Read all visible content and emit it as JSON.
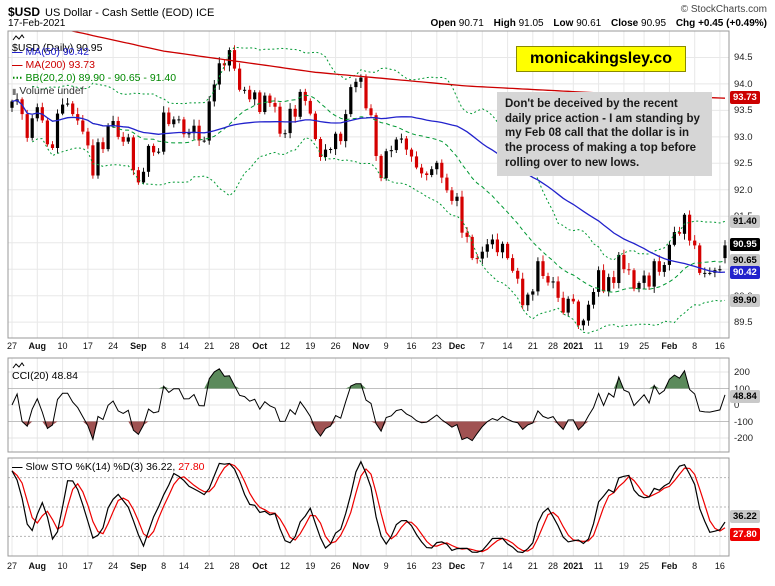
{
  "header": {
    "symbol": "$USD",
    "title": "US Dollar - Cash Settle (EOD) ICE",
    "source": "© StockCharts.com",
    "date": "17-Feb-2021",
    "open_label": "Open",
    "open": "90.71",
    "high_label": "High",
    "high": "91.05",
    "low_label": "Low",
    "low": "90.61",
    "close_label": "Close",
    "close": "90.95",
    "chg_label": "Chg",
    "chg": "+0.45 (+0.49%)"
  },
  "badge": {
    "text": "monicakingsley.co",
    "bg": "#ffff00"
  },
  "annotation": {
    "text": "Don't be deceived by the recent daily price action - I am standing by my Feb 08 call that the dollar is in the process of making a top before rolling over to new lows."
  },
  "legend": {
    "series": "$USD (Daily) 90.95",
    "ma50": "MA(50) 90.42",
    "ma200": "MA(200) 93.73",
    "bb": "BB(20,2.0) 89.90 - 90.65 - 91.40",
    "volume": "Volume undef"
  },
  "price_axis": {
    "ticks": [
      94.5,
      94.0,
      93.5,
      93.0,
      92.5,
      92.0,
      91.5,
      91.0,
      90.5,
      90.0,
      89.5
    ],
    "boxes": [
      {
        "text": "93.73",
        "value": 93.73,
        "bg": "#cc0000",
        "fg": "#ffffff"
      },
      {
        "text": "91.40",
        "value": 91.4,
        "bg": "#c9c9c9",
        "fg": "#000000"
      },
      {
        "text": "90.95",
        "value": 90.95,
        "bg": "#000000",
        "fg": "#ffffff"
      },
      {
        "text": "90.65",
        "value": 90.65,
        "bg": "#c9c9c9",
        "fg": "#000000"
      },
      {
        "text": "90.42",
        "value": 90.42,
        "bg": "#2222cc",
        "fg": "#ffffff"
      },
      {
        "text": "89.90",
        "value": 89.9,
        "bg": "#c9c9c9",
        "fg": "#000000"
      }
    ]
  },
  "cci": {
    "legend": "CCI(20) 48.84",
    "value": 48.84,
    "value_label": "48.84",
    "axis_ticks": [
      200,
      100,
      0,
      -100,
      -200
    ]
  },
  "sto": {
    "legend": "Slow STO %K(14) %D(3)",
    "k_text": "36.22,",
    "d_text": "27.80",
    "k_value": 36.22,
    "d_value": 27.8,
    "k_box": "36.22",
    "d_box": "27.80",
    "grid": [
      80,
      50,
      20
    ]
  },
  "chart_data": {
    "type": "candlestick",
    "symbol": "$USD",
    "timeframe": "daily",
    "title": "$USD US Dollar - Cash Settle (EOD) ICE",
    "price_range": [
      89.2,
      95.0
    ],
    "x_ticks": [
      [
        "27",
        0
      ],
      [
        "Aug",
        5
      ],
      [
        "10",
        10
      ],
      [
        "17",
        15
      ],
      [
        "24",
        20
      ],
      [
        "Sep",
        25
      ],
      [
        "8",
        30
      ],
      [
        "14",
        34
      ],
      [
        "21",
        39
      ],
      [
        "28",
        44
      ],
      [
        "Oct",
        49
      ],
      [
        "12",
        54
      ],
      [
        "19",
        59
      ],
      [
        "26",
        64
      ],
      [
        "Nov",
        69
      ],
      [
        "9",
        74
      ],
      [
        "16",
        79
      ],
      [
        "23",
        84
      ],
      [
        "Dec",
        88
      ],
      [
        "7",
        93
      ],
      [
        "14",
        98
      ],
      [
        "21",
        103
      ],
      [
        "28",
        107
      ],
      [
        "2021",
        111
      ],
      [
        "11",
        116
      ],
      [
        "19",
        121
      ],
      [
        "25",
        125
      ],
      [
        "Feb",
        130
      ],
      [
        "8",
        135
      ],
      [
        "16",
        140
      ]
    ],
    "close": [
      93.67,
      93.71,
      93.43,
      92.98,
      93.35,
      93.56,
      93.31,
      92.86,
      92.79,
      93.44,
      93.61,
      93.63,
      93.43,
      93.31,
      93.1,
      92.84,
      92.27,
      92.9,
      92.77,
      93.2,
      93.3,
      93.0,
      92.91,
      92.99,
      92.37,
      92.14,
      92.34,
      92.83,
      92.71,
      92.72,
      93.46,
      93.24,
      93.33,
      93.33,
      93.05,
      93.07,
      93.21,
      92.93,
      92.93,
      93.67,
      93.99,
      94.39,
      94.35,
      94.64,
      94.29,
      93.89,
      93.89,
      93.71,
      93.84,
      93.47,
      93.78,
      93.64,
      93.57,
      93.06,
      93.07,
      93.53,
      93.38,
      93.85,
      93.68,
      93.44,
      92.96,
      92.62,
      92.76,
      92.77,
      93.06,
      92.92,
      93.43,
      93.94,
      94.04,
      94.12,
      93.54,
      93.41,
      92.64,
      92.22,
      92.73,
      92.75,
      92.95,
      92.97,
      92.76,
      92.63,
      92.42,
      92.31,
      92.28,
      92.39,
      92.51,
      92.23,
      91.99,
      91.79,
      91.87,
      91.19,
      91.11,
      90.71,
      90.7,
      90.83,
      90.97,
      91.06,
      90.82,
      90.98,
      90.71,
      90.47,
      90.32,
      89.82,
      90.02,
      90.08,
      90.65,
      90.37,
      90.25,
      90.27,
      89.96,
      89.68,
      89.94,
      89.89,
      89.44,
      89.53,
      89.83,
      90.07,
      90.48,
      90.08,
      90.35,
      90.24,
      90.77,
      90.5,
      90.48,
      90.13,
      90.24,
      90.38,
      90.17,
      90.65,
      90.45,
      90.58,
      90.96,
      91.2,
      91.17,
      91.53,
      91.04,
      90.95,
      90.43,
      90.43,
      90.43,
      90.48,
      90.5,
      90.95
    ],
    "last_ohlc": {
      "open": 90.71,
      "high": 91.05,
      "low": 90.61,
      "close": 90.95
    },
    "overlays": {
      "ma50": 90.42,
      "ma200": 93.73,
      "bb_lower": 89.9,
      "bb_middle": 90.65,
      "bb_upper": 91.4
    },
    "ma200_anchors": [
      [
        0,
        95.25
      ],
      [
        30,
        94.62
      ],
      [
        60,
        94.22
      ],
      [
        90,
        93.96
      ],
      [
        120,
        93.81
      ],
      [
        141,
        93.73
      ]
    ],
    "indicators": {
      "cci20_last": 48.84,
      "slow_sto_k_last": 36.22,
      "slow_sto_d_last": 27.8
    },
    "colors": {
      "up": "#000000",
      "down": "#d40000",
      "ma50": "#2222cc",
      "ma200": "#cc0000",
      "bb": "#009933",
      "cci_pos": "#5b8a5b",
      "cci_neg": "#a05252",
      "k": "#000000",
      "d": "#ee0000"
    }
  }
}
